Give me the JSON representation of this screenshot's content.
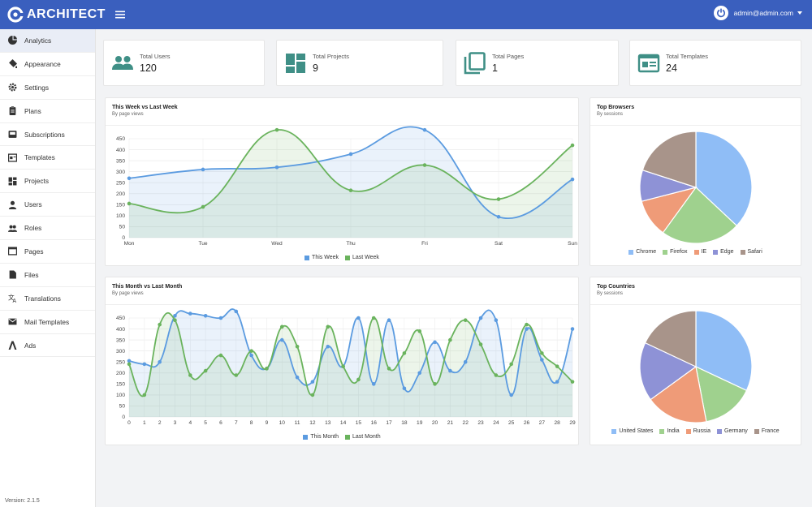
{
  "brand": {
    "name": "ARCHITECT"
  },
  "user": {
    "email": "admin@admin.com"
  },
  "sidebar": {
    "items": [
      {
        "label": "Analytics",
        "icon": "pie-chart-icon",
        "active": true
      },
      {
        "label": "Appearance",
        "icon": "paint-bucket-icon"
      },
      {
        "label": "Settings",
        "icon": "gear-icon"
      },
      {
        "label": "Plans",
        "icon": "clipboard-icon"
      },
      {
        "label": "Subscriptions",
        "icon": "inbox-icon"
      },
      {
        "label": "Templates",
        "icon": "template-icon"
      },
      {
        "label": "Projects",
        "icon": "dashboard-icon"
      },
      {
        "label": "Users",
        "icon": "user-icon"
      },
      {
        "label": "Roles",
        "icon": "group-icon"
      },
      {
        "label": "Pages",
        "icon": "browser-icon"
      },
      {
        "label": "Files",
        "icon": "file-icon"
      },
      {
        "label": "Translations",
        "icon": "translate-icon"
      },
      {
        "label": "Mail Templates",
        "icon": "mail-icon"
      },
      {
        "label": "Ads",
        "icon": "ads-icon"
      }
    ],
    "version": "Version: 2.1.5"
  },
  "stats": [
    {
      "label": "Total Users",
      "value": "120",
      "icon": "users-icon"
    },
    {
      "label": "Total Projects",
      "value": "9",
      "icon": "dashboard-icon"
    },
    {
      "label": "Total Pages",
      "value": "1",
      "icon": "copy-icon"
    },
    {
      "label": "Total Templates",
      "value": "24",
      "icon": "template-icon"
    }
  ],
  "colors": {
    "blue": "#5b9be0",
    "green": "#6ab35d",
    "header": "#3a5fbe",
    "teal": "#3f8f86"
  },
  "chart_data": [
    {
      "type": "line",
      "title": "This Week vs Last Week",
      "subtitle": "By page views",
      "categories": [
        "Mon",
        "Tue",
        "Wed",
        "Thu",
        "Fri",
        "Sat",
        "Sun"
      ],
      "ylim": [
        0,
        450
      ],
      "yticks": [
        0,
        50,
        100,
        150,
        200,
        250,
        300,
        350,
        400,
        450
      ],
      "grid": true,
      "legend": "bottom",
      "series": [
        {
          "name": "This Week",
          "values": [
            270,
            310,
            320,
            380,
            490,
            95,
            265
          ]
        },
        {
          "name": "Last Week",
          "values": [
            155,
            140,
            490,
            215,
            330,
            175,
            420
          ]
        }
      ]
    },
    {
      "type": "line",
      "title": "This Month vs Last Month",
      "subtitle": "By page views",
      "categories": [
        "0",
        "1",
        "2",
        "3",
        "4",
        "5",
        "6",
        "7",
        "8",
        "9",
        "10",
        "11",
        "12",
        "13",
        "14",
        "15",
        "16",
        "17",
        "18",
        "19",
        "20",
        "21",
        "22",
        "23",
        "24",
        "25",
        "26",
        "27",
        "28",
        "29"
      ],
      "ylim": [
        0,
        450
      ],
      "yticks": [
        0,
        50,
        100,
        150,
        200,
        250,
        300,
        350,
        400,
        450
      ],
      "grid": true,
      "legend": "bottom",
      "series": [
        {
          "name": "This Month",
          "values": [
            255,
            240,
            250,
            460,
            470,
            460,
            450,
            480,
            280,
            220,
            350,
            180,
            160,
            320,
            230,
            450,
            150,
            440,
            130,
            200,
            340,
            210,
            250,
            450,
            440,
            100,
            400,
            260,
            160,
            400
          ]
        },
        {
          "name": "Last Month",
          "values": [
            240,
            100,
            420,
            440,
            190,
            210,
            280,
            190,
            300,
            220,
            410,
            320,
            100,
            410,
            230,
            170,
            450,
            220,
            290,
            390,
            150,
            350,
            440,
            330,
            190,
            240,
            420,
            290,
            230,
            160
          ]
        }
      ]
    },
    {
      "type": "pie",
      "title": "Top Browsers",
      "subtitle": "By sessions",
      "legend": "bottom",
      "slices": [
        {
          "label": "Chrome",
          "value": 37,
          "color": "#8fbdf6"
        },
        {
          "label": "Firefox",
          "value": 23,
          "color": "#9fd18e"
        },
        {
          "label": "IE",
          "value": 11,
          "color": "#ef9b78"
        },
        {
          "label": "Edge",
          "value": 9,
          "color": "#8e92d6"
        },
        {
          "label": "Safari",
          "value": 20,
          "color": "#a8948a"
        }
      ]
    },
    {
      "type": "pie",
      "title": "Top Countries",
      "subtitle": "By sessions",
      "legend": "bottom",
      "slices": [
        {
          "label": "United States",
          "value": 32,
          "color": "#8fbdf6"
        },
        {
          "label": "India",
          "value": 15,
          "color": "#9fd18e"
        },
        {
          "label": "Russia",
          "value": 18,
          "color": "#ef9b78"
        },
        {
          "label": "Germany",
          "value": 17,
          "color": "#8e92d6"
        },
        {
          "label": "France",
          "value": 18,
          "color": "#a8948a"
        }
      ]
    }
  ]
}
